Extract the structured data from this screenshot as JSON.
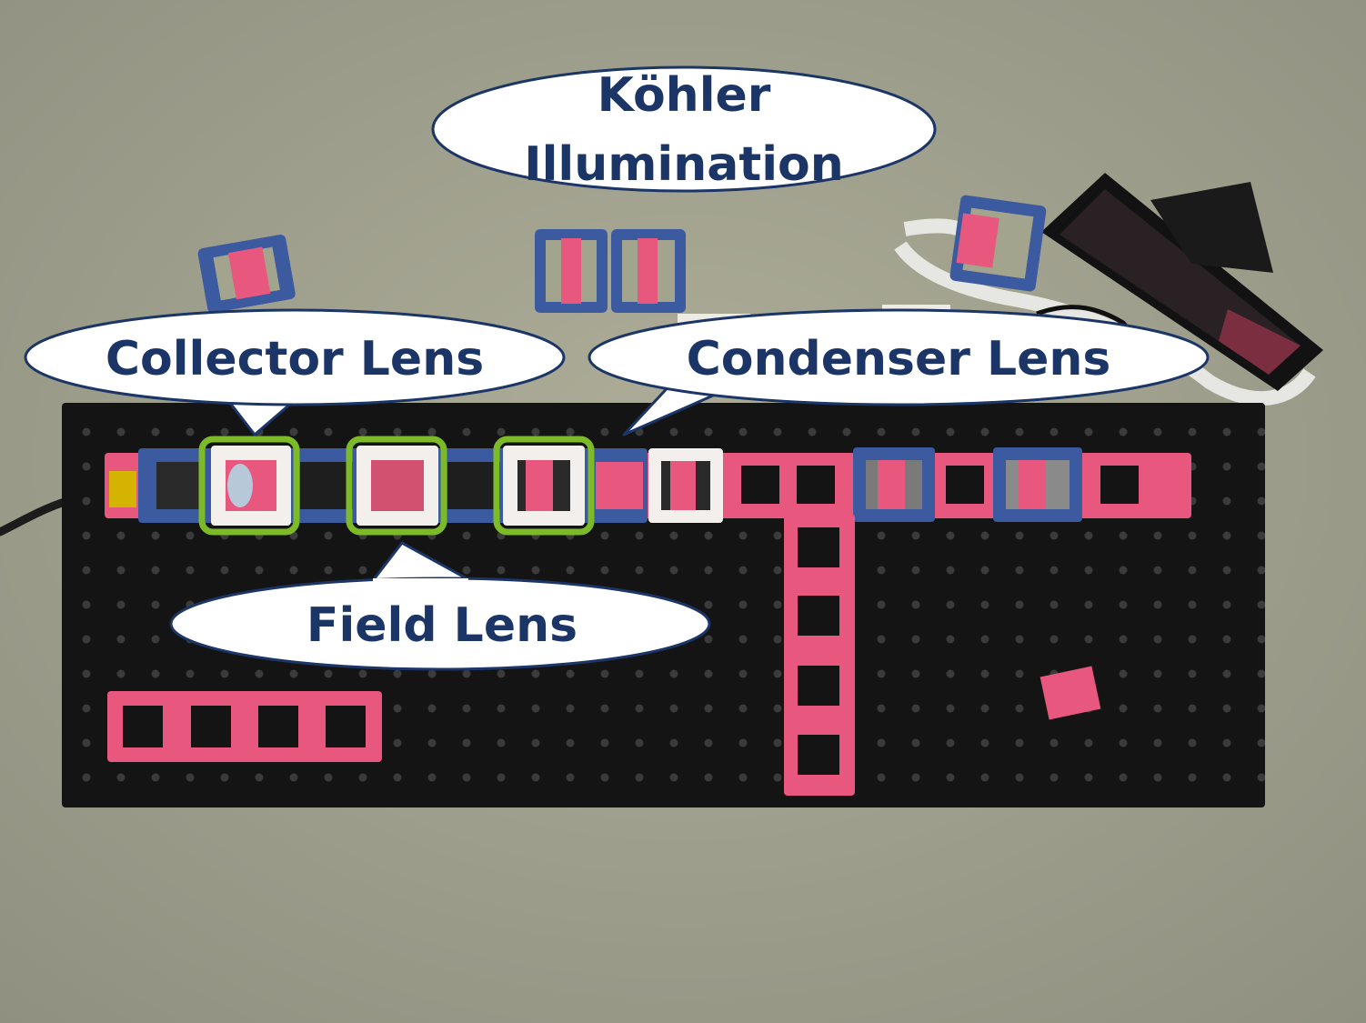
{
  "callouts": {
    "kohler": {
      "line1": "Köhler",
      "line2": "Illumination"
    },
    "collector": {
      "label": "Collector Lens"
    },
    "condenser": {
      "label": "Condenser Lens"
    },
    "field": {
      "label": "Field Lens"
    }
  },
  "colors": {
    "floor": "#a3a48e",
    "board": "#141414",
    "pink_part": "#e8577e",
    "blue_cube": "#3c5aa0",
    "white_cube": "#f2efec",
    "highlight": "#7dba28",
    "callout_text": "#1a3566"
  },
  "scene": {
    "floor": "gray concrete floor",
    "board": "black optical breadboard",
    "lens_icon": "lens-icon",
    "camera_icon": "camera-icon",
    "screen_icon": "display-screen-icon"
  }
}
